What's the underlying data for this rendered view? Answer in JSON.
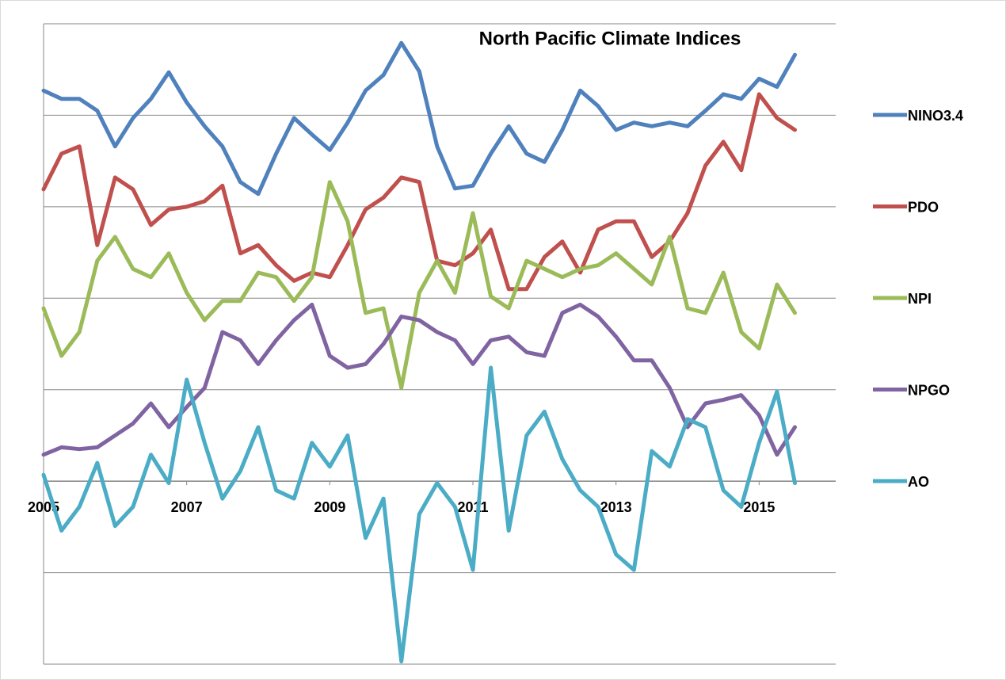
{
  "chart_data": {
    "type": "line",
    "title": "North Pacific Climate Indices",
    "x": [
      2005,
      2005.25,
      2005.5,
      2005.75,
      2006,
      2006.25,
      2006.5,
      2006.75,
      2007,
      2007.25,
      2007.5,
      2007.75,
      2008,
      2008.25,
      2008.5,
      2008.75,
      2009,
      2009.25,
      2009.5,
      2009.75,
      2010,
      2010.25,
      2010.5,
      2010.75,
      2011,
      2011.25,
      2011.5,
      2011.75,
      2012,
      2012.25,
      2012.5,
      2012.75,
      2013,
      2013.25,
      2013.5,
      2013.75,
      2014,
      2014.25,
      2014.5,
      2014.75,
      2015,
      2015.25,
      2015.5
    ],
    "xlim": [
      2005,
      2016.07
    ],
    "xticks": [
      2005,
      2007,
      2009,
      2011,
      2013,
      2015
    ],
    "ylim": [
      -2,
      5
    ],
    "yticks": [
      -2,
      -1,
      0,
      1,
      2,
      3,
      4,
      5
    ],
    "grid": true,
    "legend": "right",
    "series": [
      {
        "name": "NINO3.4",
        "color": "#4f81bd",
        "values": [
          4.27,
          4.18,
          4.18,
          4.05,
          3.66,
          3.97,
          4.18,
          4.47,
          4.14,
          3.88,
          3.66,
          3.27,
          3.14,
          3.58,
          3.97,
          3.79,
          3.62,
          3.92,
          4.27,
          4.44,
          4.79,
          4.48,
          3.66,
          3.2,
          3.23,
          3.58,
          3.88,
          3.58,
          3.49,
          3.84,
          4.27,
          4.1,
          3.84,
          3.92,
          3.88,
          3.92,
          3.88,
          4.05,
          4.23,
          4.18,
          4.4,
          4.31,
          4.66
        ]
      },
      {
        "name": "PDO",
        "color": "#c0504d",
        "values": [
          3.19,
          3.58,
          3.66,
          2.58,
          3.32,
          3.19,
          2.8,
          2.97,
          3.0,
          3.06,
          3.23,
          2.49,
          2.58,
          2.36,
          2.19,
          2.28,
          2.23,
          2.58,
          2.97,
          3.1,
          3.32,
          3.27,
          2.41,
          2.36,
          2.49,
          2.75,
          2.1,
          2.1,
          2.45,
          2.62,
          2.28,
          2.75,
          2.84,
          2.84,
          2.45,
          2.62,
          2.93,
          3.45,
          3.71,
          3.4,
          4.23,
          3.97,
          3.84
        ]
      },
      {
        "name": "NPI",
        "color": "#9bbb59",
        "values": [
          1.89,
          1.37,
          1.63,
          2.41,
          2.67,
          2.32,
          2.23,
          2.49,
          2.06,
          1.76,
          1.97,
          1.97,
          2.28,
          2.23,
          1.97,
          2.23,
          3.27,
          2.84,
          1.84,
          1.89,
          1.02,
          2.06,
          2.41,
          2.06,
          2.93,
          2.02,
          1.89,
          2.41,
          2.32,
          2.23,
          2.32,
          2.36,
          2.49,
          2.32,
          2.15,
          2.67,
          1.89,
          1.84,
          2.28,
          1.63,
          1.45,
          2.15,
          1.84
        ]
      },
      {
        "name": "NPGO",
        "color": "#8064a2",
        "values": [
          0.29,
          0.37,
          0.35,
          0.37,
          0.5,
          0.63,
          0.85,
          0.59,
          0.81,
          1.02,
          1.63,
          1.54,
          1.28,
          1.54,
          1.76,
          1.93,
          1.37,
          1.24,
          1.28,
          1.5,
          1.8,
          1.76,
          1.63,
          1.54,
          1.28,
          1.54,
          1.58,
          1.41,
          1.37,
          1.84,
          1.93,
          1.8,
          1.58,
          1.32,
          1.32,
          1.02,
          0.59,
          0.85,
          0.89,
          0.94,
          0.72,
          0.29,
          0.59
        ]
      },
      {
        "name": "AO",
        "color": "#4bacc6",
        "values": [
          0.07,
          -0.54,
          -0.28,
          0.2,
          -0.49,
          -0.28,
          0.29,
          -0.02,
          1.11,
          0.42,
          -0.19,
          0.11,
          0.59,
          -0.1,
          -0.19,
          0.42,
          0.16,
          0.5,
          -0.62,
          -0.19,
          -1.97,
          -0.36,
          -0.02,
          -0.28,
          -0.97,
          1.24,
          -0.54,
          0.5,
          0.76,
          0.24,
          -0.1,
          -0.28,
          -0.8,
          -0.97,
          0.33,
          0.16,
          0.68,
          0.59,
          -0.1,
          -0.28,
          0.42,
          0.98,
          -0.02
        ]
      }
    ]
  }
}
